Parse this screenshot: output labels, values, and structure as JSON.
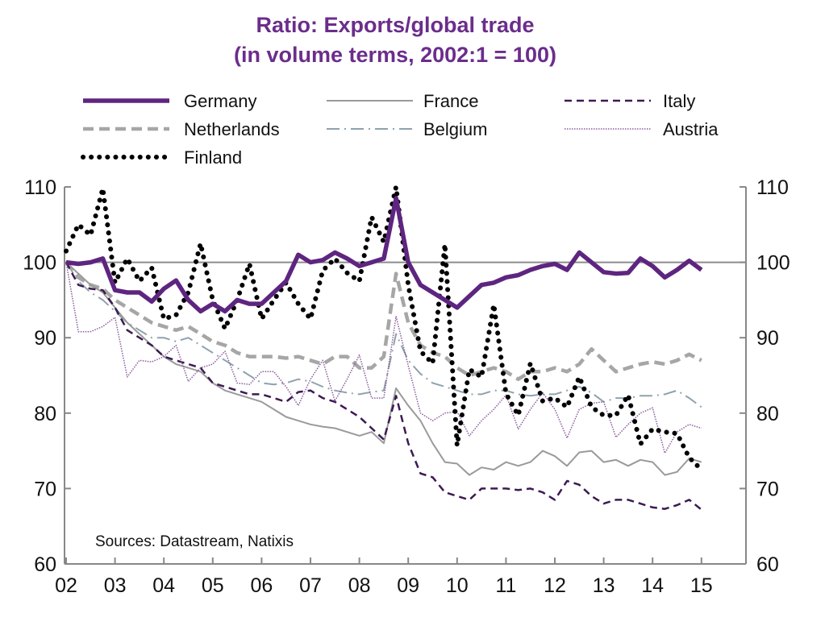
{
  "chart_data": {
    "type": "line",
    "title": "Ratio: Exports/global trade",
    "subtitle": "(in volume terms, 2002:1 = 100)",
    "source": "Sources: Datastream, Natixis",
    "x_start": 2002,
    "x_frequency": "quarterly",
    "x_tick_labels": [
      "02",
      "03",
      "04",
      "05",
      "06",
      "07",
      "08",
      "09",
      "10",
      "11",
      "12",
      "13",
      "14",
      "15"
    ],
    "y_tick_labels": [
      "60",
      "70",
      "80",
      "90",
      "100",
      "110"
    ],
    "ylim": [
      60,
      110
    ],
    "xlim": [
      2002,
      2015.8
    ],
    "reference_line": 100,
    "grid": false,
    "legend_position": "top",
    "title_color": "#6b2d8c",
    "series": [
      {
        "name": "Germany",
        "color": "#5e2580",
        "style": "solid-thick",
        "values": [
          100,
          99.8,
          100,
          100.5,
          96.3,
          96,
          96,
          94.8,
          96.5,
          97.6,
          95,
          93.5,
          94.5,
          93.5,
          95,
          94.5,
          94.5,
          96,
          97.5,
          101,
          100,
          100.3,
          101.3,
          100.5,
          99.5,
          100,
          100.5,
          108.5,
          100,
          97,
          96,
          95,
          94,
          95.5,
          97,
          97.3,
          98,
          98.3,
          99,
          99.5,
          99.8,
          99,
          101.3,
          100,
          98.7,
          98.5,
          98.6,
          100.5,
          99.5,
          98,
          99,
          100.2,
          99
        ]
      },
      {
        "name": "France",
        "color": "#9a9a9a",
        "style": "solid-thin",
        "values": [
          100,
          98.5,
          97,
          96,
          94,
          92,
          90.5,
          89,
          87.5,
          86.5,
          86,
          85.5,
          84,
          83,
          82.5,
          82,
          81.5,
          80.5,
          79.5,
          79,
          78.5,
          78.2,
          78,
          77.5,
          77,
          77.5,
          76,
          83.3,
          81,
          79,
          76,
          73.5,
          73.3,
          71.8,
          72.8,
          72.5,
          73.5,
          73,
          73.5,
          75,
          74.3,
          73,
          74.8,
          75,
          73.5,
          73.8,
          73,
          73.8,
          73.5,
          71.8,
          72.2,
          74,
          73.5
        ]
      },
      {
        "name": "Italy",
        "color": "#3d1a52",
        "style": "dashed",
        "values": [
          100,
          97,
          96.5,
          96.3,
          94,
          91,
          90,
          89,
          87.5,
          87,
          86.5,
          86,
          84,
          83.5,
          83,
          82.5,
          82.5,
          82,
          81.5,
          82.8,
          83,
          82,
          81.5,
          80.5,
          79.5,
          78,
          76.5,
          82.3,
          76,
          72,
          71.5,
          69.5,
          69,
          68.5,
          70,
          70,
          70,
          69.8,
          70,
          69.5,
          68.5,
          71,
          70.5,
          69,
          68,
          68.5,
          68.5,
          68,
          67.5,
          67.3,
          67.8,
          68.5,
          67.2
        ]
      },
      {
        "name": "Netherlands",
        "color": "#a6a6a6",
        "style": "dashed-thick",
        "values": [
          100,
          98,
          97,
          96.5,
          95,
          94,
          93,
          92,
          91.5,
          91,
          91.5,
          90.5,
          89.5,
          89,
          88,
          87.5,
          87.5,
          87.5,
          87.3,
          87.5,
          87,
          86.5,
          87.5,
          87.5,
          86,
          86,
          87.5,
          98.5,
          92,
          89,
          88,
          87.5,
          86,
          85,
          85.5,
          86,
          85.5,
          84.5,
          85.5,
          85.5,
          86,
          85.5,
          86.5,
          88.5,
          87,
          85.5,
          86,
          86.5,
          86.8,
          86.5,
          87,
          87.8,
          87
        ]
      },
      {
        "name": "Belgium",
        "color": "#8ea2ad",
        "style": "dash-dot",
        "values": [
          100,
          97.5,
          96,
          95,
          93.5,
          92,
          91,
          90,
          90,
          89.5,
          90,
          89,
          88,
          87,
          86,
          85,
          84,
          83.8,
          84,
          84.5,
          84.2,
          83.5,
          83,
          82.7,
          82.5,
          82.8,
          83,
          90.5,
          87,
          85.2,
          84,
          83.5,
          83,
          82.5,
          82.5,
          83,
          83,
          82.5,
          82.3,
          82.5,
          82.5,
          83,
          83.5,
          82.7,
          81.5,
          82,
          82,
          82.3,
          82.3,
          82.5,
          83,
          82,
          80.8
        ]
      },
      {
        "name": "Austria",
        "color": "#8b5c9e",
        "style": "dotted-thin",
        "values": [
          100,
          90.8,
          90.8,
          91.5,
          92.7,
          84.8,
          87,
          86.8,
          87.5,
          89,
          84.2,
          86,
          86.5,
          88.2,
          84,
          83.8,
          85.5,
          85.5,
          83.5,
          81,
          84.5,
          87,
          81.6,
          84.5,
          87.7,
          82,
          82,
          92.8,
          86.3,
          80,
          79,
          80,
          80.2,
          77,
          79,
          80.5,
          82.4,
          77.9,
          80.5,
          82.7,
          80.5,
          76.7,
          80.5,
          81.3,
          81.5,
          76.8,
          78.5,
          80,
          80.7,
          74.7,
          77.5,
          78.5,
          78
        ]
      },
      {
        "name": "Finland",
        "color": "#000000",
        "style": "dotted-thick",
        "values": [
          101.5,
          105,
          103.6,
          109.8,
          97.3,
          100.5,
          97.5,
          99.3,
          92.5,
          93,
          96,
          102.5,
          95,
          91.2,
          95,
          99.8,
          92.5,
          95,
          97.3,
          94.5,
          92.5,
          98.9,
          100.5,
          98.6,
          97.5,
          106,
          102.7,
          110,
          97,
          88.2,
          86.6,
          102.4,
          75.7,
          85.8,
          84.8,
          94.4,
          82.6,
          79.7,
          86.6,
          81.6,
          82,
          80.8,
          84.8,
          80.8,
          79.7,
          79.7,
          82.4,
          75.9,
          77.9,
          77.5,
          77.3,
          74.1,
          72.5
        ]
      }
    ]
  }
}
